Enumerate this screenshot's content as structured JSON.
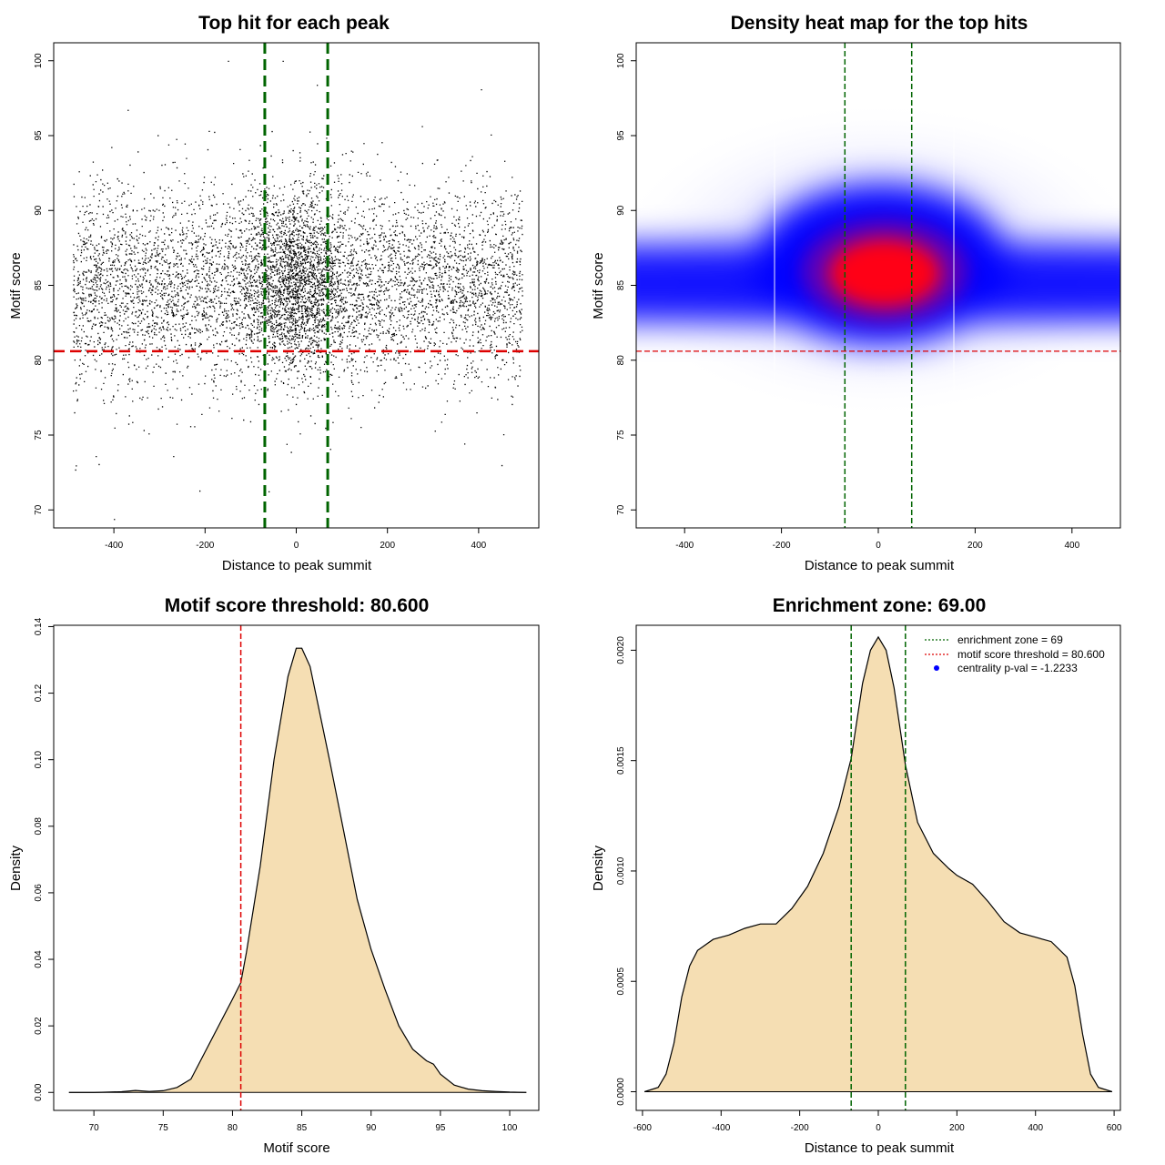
{
  "chart_data": [
    {
      "type": "scatter",
      "title": "Top hit for each peak",
      "xlabel": "Distance to peak summit",
      "ylabel": "Motif score",
      "xlim": [
        -532,
        532
      ],
      "ylim": [
        68.8,
        101.2
      ],
      "xticks": [
        -400,
        -200,
        0,
        200,
        400
      ],
      "yticks": [
        70,
        75,
        80,
        85,
        90,
        95,
        100
      ],
      "vlines": [
        -69,
        69
      ],
      "hline": 80.6,
      "sample_points": [
        {
          "x": -400,
          "y": 69.4
        },
        {
          "x": -150,
          "y": 100
        },
        {
          "x": -30,
          "y": 100
        },
        {
          "x": 45,
          "y": 98.4
        },
        {
          "x": 405,
          "y": 98.1
        },
        {
          "x": 450,
          "y": 73
        },
        {
          "x": -485,
          "y": 72.7
        },
        {
          "x": -440,
          "y": 73.6
        },
        {
          "x": -270,
          "y": 73.6
        },
        {
          "x": 40,
          "y": 75.8
        }
      ],
      "point_cloud": {
        "x_range": [
          -500,
          500
        ],
        "y_center": 85,
        "description_free": true
      }
    },
    {
      "type": "heatmap",
      "title": "Density heat map for the top hits",
      "xlabel": "Distance to peak summit",
      "ylabel": "Motif score",
      "xlim": [
        -500,
        500
      ],
      "ylim": [
        68.8,
        101.2
      ],
      "xticks": [
        -400,
        -200,
        0,
        200,
        400
      ],
      "yticks": [
        70,
        75,
        80,
        85,
        90,
        95,
        100
      ],
      "vlines": [
        -69,
        69
      ],
      "hline": 80.6,
      "peak": {
        "x": 10,
        "y": 85.4
      },
      "colors": [
        "#ffffff",
        "#0000ff",
        "#ff0000"
      ]
    },
    {
      "type": "area",
      "title": "Motif score threshold: 80.600",
      "xlabel": "Motif score",
      "ylabel": "Density",
      "xlim": [
        67.1,
        102.1
      ],
      "ylim": [
        -0.0054,
        0.1404
      ],
      "xticks": [
        70,
        75,
        80,
        85,
        90,
        95,
        100
      ],
      "yticks": [
        0.0,
        0.02,
        0.04,
        0.06,
        0.08,
        0.1,
        0.12,
        0.14
      ],
      "ytick_labels": [
        "0.00",
        "0.02",
        "0.04",
        "0.06",
        "0.08",
        "0.10",
        "0.12",
        "0.14"
      ],
      "vline": 80.6,
      "x": [
        68.2,
        70,
        72,
        73,
        74,
        75,
        76,
        77,
        78,
        79,
        80,
        80.6,
        81,
        82,
        83,
        84,
        84.6,
        85,
        85.6,
        86,
        86.5,
        87,
        88,
        89,
        90,
        91,
        92,
        93,
        94,
        94.5,
        95,
        96,
        97,
        98,
        99,
        100,
        101.2
      ],
      "values": [
        0.0,
        0.0,
        0.0002,
        0.0006,
        0.0003,
        0.0005,
        0.0015,
        0.004,
        0.012,
        0.02,
        0.028,
        0.033,
        0.042,
        0.068,
        0.1,
        0.125,
        0.1335,
        0.1335,
        0.128,
        0.12,
        0.11,
        0.1,
        0.079,
        0.058,
        0.043,
        0.031,
        0.02,
        0.013,
        0.0095,
        0.0085,
        0.0055,
        0.0022,
        0.001,
        0.0005,
        0.0003,
        0.0001,
        0.0
      ]
    },
    {
      "type": "area",
      "title": "Enrichment zone: 69.00",
      "xlabel": "Distance to peak summit",
      "ylabel": "Density",
      "xlim": [
        -616,
        616
      ],
      "ylim": [
        -8.45e-05,
        0.002113
      ],
      "xticks": [
        -600,
        -400,
        -200,
        0,
        200,
        400,
        600
      ],
      "yticks": [
        0.0,
        0.0005,
        0.001,
        0.0015,
        0.002
      ],
      "ytick_labels": [
        "0.0000",
        "0.0005",
        "0.0010",
        "0.0015",
        "0.0020"
      ],
      "vlines": [
        -69,
        69
      ],
      "x": [
        -595,
        -560,
        -540,
        -520,
        -500,
        -480,
        -460,
        -420,
        -380,
        -340,
        -300,
        -260,
        -220,
        -180,
        -140,
        -100,
        -69,
        -40,
        -20,
        0,
        20,
        40,
        69,
        100,
        140,
        180,
        200,
        240,
        280,
        320,
        360,
        400,
        440,
        480,
        500,
        520,
        540,
        560,
        595
      ],
      "values": [
        0.0,
        2e-05,
        8e-05,
        0.00022,
        0.00043,
        0.00057,
        0.00064,
        0.00069,
        0.00071,
        0.00074,
        0.00076,
        0.00076,
        0.00083,
        0.00093,
        0.00108,
        0.00129,
        0.00151,
        0.00185,
        0.002,
        0.00206,
        0.002,
        0.00183,
        0.00148,
        0.00122,
        0.00108,
        0.00101,
        0.00098,
        0.00094,
        0.00086,
        0.00077,
        0.00072,
        0.0007,
        0.00068,
        0.00061,
        0.00048,
        0.00026,
        8e-05,
        2e-05,
        0.0
      ]
    }
  ],
  "legend": {
    "zone_label": "enrichment zone = 69",
    "threshold_label": "motif score threshold = 80.600",
    "pval_label": "centrality p-val = -1.2233"
  },
  "colors": {
    "fill": "#f5deb3",
    "red_line": "#dd0000",
    "green_line": "#006400",
    "points": "#000000"
  }
}
